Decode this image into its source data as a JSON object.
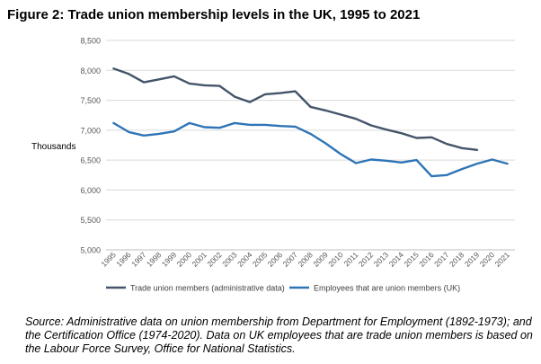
{
  "chart_data": {
    "type": "line",
    "title": "Figure 2: Trade union membership levels in the UK, 1995 to 2021",
    "xlabel": "",
    "ylabel": "Thousands",
    "ylim": [
      5000,
      8500
    ],
    "y_ticks": [
      5000,
      5500,
      6000,
      6500,
      7000,
      7500,
      8000,
      8500
    ],
    "y_tick_labels": [
      "5,000",
      "5,500",
      "6,000",
      "6,500",
      "7,000",
      "7,500",
      "8,000",
      "8,500"
    ],
    "x": [
      1995,
      1996,
      1997,
      1998,
      1999,
      2000,
      2001,
      2002,
      2003,
      2004,
      2005,
      2006,
      2007,
      2008,
      2009,
      2010,
      2011,
      2012,
      2013,
      2014,
      2015,
      2016,
      2017,
      2018,
      2019,
      2020,
      2021
    ],
    "grid": true,
    "legend": "bottom",
    "series": [
      {
        "name": "Trade union members (administrative data)",
        "color": "#44546a",
        "values": [
          8030,
          7940,
          7800,
          7850,
          7900,
          7780,
          7750,
          7740,
          7560,
          7470,
          7600,
          7620,
          7650,
          7390,
          7330,
          7260,
          7190,
          7080,
          7010,
          6950,
          6870,
          6880,
          6770,
          6700,
          6670,
          null,
          null
        ]
      },
      {
        "name": "Employees that are union members (UK)",
        "color": "#2e75b6",
        "values": [
          7120,
          6970,
          6910,
          6940,
          6980,
          7120,
          7050,
          7040,
          7120,
          7090,
          7090,
          7070,
          7060,
          6940,
          6780,
          6600,
          6450,
          6510,
          6490,
          6460,
          6500,
          6230,
          6250,
          6350,
          6440,
          6510,
          6440
        ]
      }
    ]
  },
  "source_note": "Source: Administrative data on union membership from Department for Employment (1892-1973); and the Certification Office (1974-2020). Data on UK employees that are trade union members is based on the Labour Force Survey, Office for National Statistics."
}
